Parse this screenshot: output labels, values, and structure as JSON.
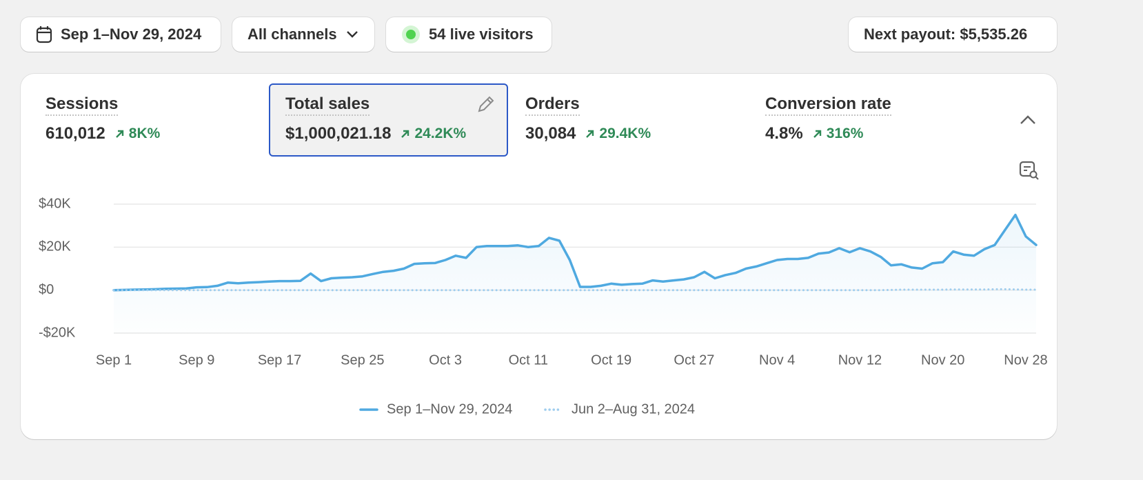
{
  "toolbar": {
    "date_range": "Sep 1–Nov 29, 2024",
    "channels": "All channels",
    "live_visitors": "54 live visitors",
    "payout": "Next payout: $5,535.26"
  },
  "metrics": [
    {
      "name": "Sessions",
      "value": "610,012",
      "change": "8K%"
    },
    {
      "name": "Total sales",
      "value": "$1,000,021.18",
      "change": "24.2K%",
      "selected": true
    },
    {
      "name": "Orders",
      "value": "30,084",
      "change": "29.4K%"
    },
    {
      "name": "Conversion rate",
      "value": "4.8%",
      "change": "316%"
    }
  ],
  "chart_data": {
    "type": "line",
    "categories": [
      "Sep 1",
      null,
      null,
      null,
      null,
      null,
      null,
      null,
      "Sep 9",
      null,
      null,
      null,
      null,
      null,
      null,
      null,
      "Sep 17",
      null,
      null,
      null,
      null,
      null,
      null,
      null,
      "Sep 25",
      null,
      null,
      null,
      null,
      null,
      null,
      null,
      "Oct 3",
      null,
      null,
      null,
      null,
      null,
      null,
      null,
      "Oct 11",
      null,
      null,
      null,
      null,
      null,
      null,
      null,
      "Oct 19",
      null,
      null,
      null,
      null,
      null,
      null,
      null,
      "Oct 27",
      null,
      null,
      null,
      null,
      null,
      null,
      null,
      "Nov 4",
      null,
      null,
      null,
      null,
      null,
      null,
      null,
      "Nov 12",
      null,
      null,
      null,
      null,
      null,
      null,
      null,
      "Nov 20",
      null,
      null,
      null,
      null,
      null,
      null,
      null,
      "Nov 28",
      null
    ],
    "series": [
      {
        "name": "Sep 1–Nov 29, 2024",
        "color": "#4fa9e0",
        "style": "solid",
        "values": [
          0,
          100,
          200,
          300,
          400,
          600,
          700,
          800,
          1300,
          1400,
          2000,
          3500,
          3200,
          3500,
          3700,
          4000,
          4200,
          4200,
          4300,
          7700,
          4200,
          5500,
          5800,
          6000,
          6400,
          7500,
          8500,
          9000,
          10000,
          12200,
          12500,
          12600,
          14000,
          16000,
          15000,
          20000,
          20500,
          20500,
          20500,
          20800,
          20000,
          20500,
          24300,
          23000,
          14000,
          1500,
          1500,
          2000,
          3000,
          2500,
          2800,
          3000,
          4500,
          4000,
          4500,
          5000,
          6000,
          8500,
          5500,
          7000,
          8000,
          10000,
          11000,
          12500,
          14000,
          14500,
          14500,
          15000,
          17000,
          17500,
          19500,
          17600,
          19500,
          18000,
          15500,
          11500,
          12000,
          10500,
          10000,
          12500,
          13000,
          18000,
          16500,
          16000,
          19000,
          21000,
          28000,
          35000,
          25000,
          21000
        ]
      },
      {
        "name": "Jun 2–Aug 31, 2024",
        "color": "#9fcdee",
        "style": "dotted",
        "values": [
          0,
          0,
          0,
          0,
          0,
          0,
          0,
          0,
          0,
          0,
          0,
          0,
          0,
          0,
          0,
          0,
          0,
          0,
          0,
          0,
          0,
          0,
          0,
          0,
          0,
          0,
          0,
          0,
          0,
          0,
          0,
          0,
          0,
          0,
          0,
          0,
          0,
          0,
          0,
          0,
          0,
          0,
          0,
          0,
          0,
          0,
          0,
          0,
          0,
          0,
          0,
          0,
          0,
          0,
          0,
          0,
          0,
          0,
          0,
          0,
          0,
          0,
          0,
          0,
          0,
          0,
          0,
          0,
          0,
          0,
          0,
          0,
          0,
          0,
          0,
          100,
          200,
          200,
          200,
          200,
          200,
          300,
          300,
          300,
          300,
          400,
          400,
          300,
          200,
          200
        ]
      }
    ],
    "ylim": [
      -20000,
      40000
    ],
    "yticks": [
      {
        "value": 40000,
        "label": "$40K"
      },
      {
        "value": 20000,
        "label": "$20K"
      },
      {
        "value": 0,
        "label": "$0"
      },
      {
        "value": -20000,
        "label": "-$20K"
      }
    ],
    "grid": true,
    "legend": "bottom"
  }
}
